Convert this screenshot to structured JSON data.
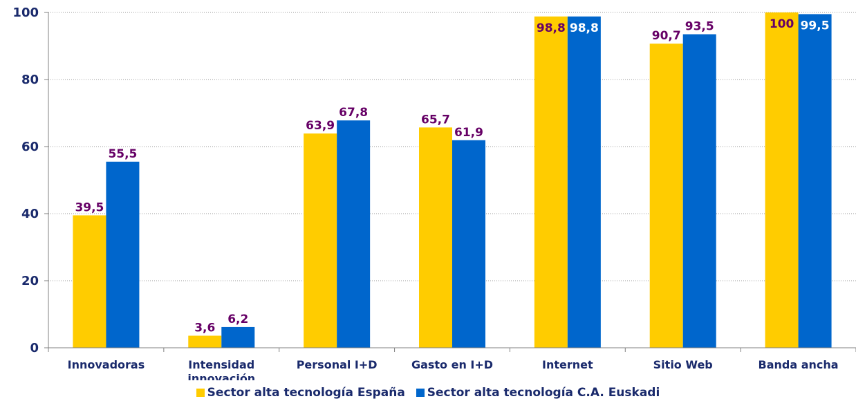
{
  "chart_data": {
    "type": "bar",
    "categories": [
      "Innovadoras",
      "Intensidad innovación",
      "Personal I+D",
      "Gasto en I+D",
      "Internet",
      "Sitio Web",
      "Banda ancha"
    ],
    "category_lines": [
      [
        "Innovadoras"
      ],
      [
        "Intensidad",
        "innovación"
      ],
      [
        "Personal I+D"
      ],
      [
        "Gasto en I+D"
      ],
      [
        "Internet"
      ],
      [
        "Sitio Web"
      ],
      [
        "Banda ancha"
      ]
    ],
    "series": [
      {
        "name": "Sector alta tecnología España",
        "color": "#FFCC00",
        "values": [
          39.5,
          3.6,
          63.9,
          65.7,
          98.8,
          90.7,
          100
        ],
        "labels": [
          "39,5",
          "3,6",
          "63,9",
          "65,7",
          "98,8",
          "90,7",
          "100"
        ]
      },
      {
        "name": "Sector alta tecnología C.A. Euskadi",
        "color": "#0066CC",
        "values": [
          55.5,
          6.2,
          67.8,
          61.9,
          98.8,
          93.5,
          99.5
        ],
        "labels": [
          "55,5",
          "6,2",
          "67,8",
          "61,9",
          "98,8",
          "93,5",
          "99,5"
        ]
      }
    ],
    "ylim": [
      0,
      100
    ],
    "yticks": [
      0,
      20,
      40,
      60,
      80,
      100
    ],
    "grid": true,
    "legend_position": "bottom",
    "label_color": "#660066",
    "label_inside_color": "#ffffff",
    "axis_text_color": "#1a2a6c",
    "title": "",
    "xlabel": "",
    "ylabel": ""
  }
}
